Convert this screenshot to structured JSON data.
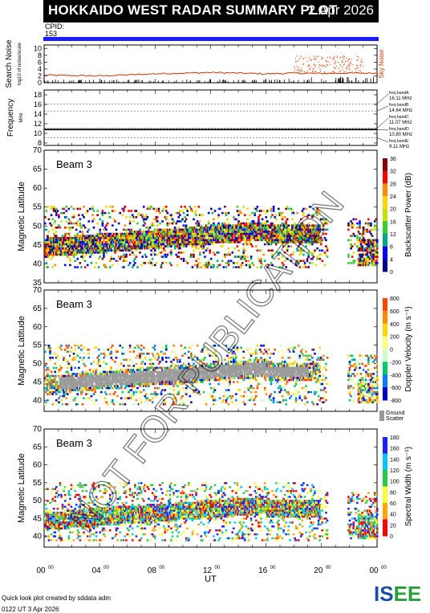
{
  "header": {
    "title": "HOKKAIDO WEST RADAR SUMMARY PLOT",
    "date": "2 Apr 2026",
    "cpid_label": "CPID:",
    "cpid_value": "153"
  },
  "colors": {
    "noise_line": "#cc3300",
    "noise_dots": "#e06030",
    "cpid_bar": "#1a1aff",
    "ground_scatter": "#9a9a9a",
    "power_scale": [
      "#8b0000",
      "#ff0000",
      "#ff8c00",
      "#ffd700",
      "#c8e000",
      "#32cd32",
      "#00aa88",
      "#0000ff",
      "#000099"
    ],
    "velocity_scale": [
      "#ff4500",
      "#ff8c00",
      "#ffd700",
      "#ffff80",
      "#ccffcc",
      "#00cc66",
      "#0080ff",
      "#0000cc"
    ],
    "width_scale": [
      "#1f1fff",
      "#00c8ff",
      "#22cc44",
      "#ffff33",
      "#ffa500",
      "#ff0000"
    ]
  },
  "chart_data": [
    {
      "type": "line",
      "panel": "noise",
      "ylabel": "Search Noise",
      "ylabel_sub": "log10 of noise/scale",
      "yticks": [
        0,
        2,
        4,
        6,
        8,
        10
      ],
      "ylim": [
        0,
        11
      ],
      "right_label": "Sky Noise",
      "x": [
        0,
        4,
        8,
        12,
        16,
        18,
        20,
        22,
        24
      ],
      "series": [
        {
          "name": "Sky Noise",
          "values": [
            2.2,
            2.0,
            2.6,
            3.0,
            2.6,
            2.8,
            2.7,
            2.8,
            2.8
          ]
        }
      ]
    },
    {
      "type": "line",
      "panel": "frequency",
      "ylabel": "Frequency",
      "ylabel_sub": "MHz",
      "yticks": [
        8,
        10,
        12,
        14,
        16,
        18
      ],
      "ylim": [
        7.5,
        19
      ],
      "band_labels": [
        {
          "name": "freq bandA",
          "value": "16.11 MHz",
          "freq": 16.11
        },
        {
          "name": "freq bandB",
          "value": "14.64 MHz",
          "freq": 14.64
        },
        {
          "name": "freq bandC",
          "value": "11.07 MHz",
          "freq": 11.07
        },
        {
          "name": "freq bandD",
          "value": "10.80 MHz",
          "freq": 10.8
        },
        {
          "name": "freq bandE",
          "value": "9.11 MHz",
          "freq": 9.11
        }
      ]
    },
    {
      "type": "heatmap",
      "panel": "power",
      "beam_label": "Beam  3",
      "ylabel": "Magnetic Latitude",
      "yticks": [
        35,
        40,
        45,
        50,
        55,
        60,
        65,
        70
      ],
      "ylim": [
        35,
        70
      ],
      "scale_label": "Backscatter Power (dB)",
      "scale_ticks": [
        "0",
        "4",
        "8",
        "12",
        "16",
        "20",
        "24",
        "28",
        "32",
        "36"
      ]
    },
    {
      "type": "heatmap",
      "panel": "velocity",
      "beam_label": "Beam  3",
      "ylabel": "Magnetic Latitude",
      "yticks": [
        40,
        45,
        50,
        55,
        60,
        65,
        70
      ],
      "ylim": [
        37,
        70
      ],
      "scale_label": "Doppler Velocity (m s⁻¹)",
      "scale_ticks": [
        "-800",
        "-600",
        "-400",
        "-200",
        "0",
        "200",
        "400",
        "600",
        "800"
      ],
      "ground_label_1": "Ground",
      "ground_label_2": "Scatter"
    },
    {
      "type": "heatmap",
      "panel": "width",
      "beam_label": "Beam  3",
      "ylabel": "Magnetic Latitude",
      "yticks": [
        40,
        45,
        50,
        55,
        60,
        65,
        70
      ],
      "ylim": [
        37,
        70
      ],
      "scale_label": "Spectral Width (m s⁻¹)",
      "scale_ticks": [
        "0",
        "20",
        "40",
        "60",
        "80",
        "100",
        "120",
        "140",
        "160",
        "180"
      ],
      "xticks": [
        "00",
        "04",
        "08",
        "12",
        "16",
        "20",
        "00"
      ],
      "xtick_sup": "00",
      "xlabel": "UT"
    }
  ],
  "footer": {
    "note": "Quick look plot created by sddata adm",
    "date": "0122 UT  3 Apr 2026",
    "logo": "ISEE"
  },
  "watermark": "NOT FOR PUBLICATION"
}
